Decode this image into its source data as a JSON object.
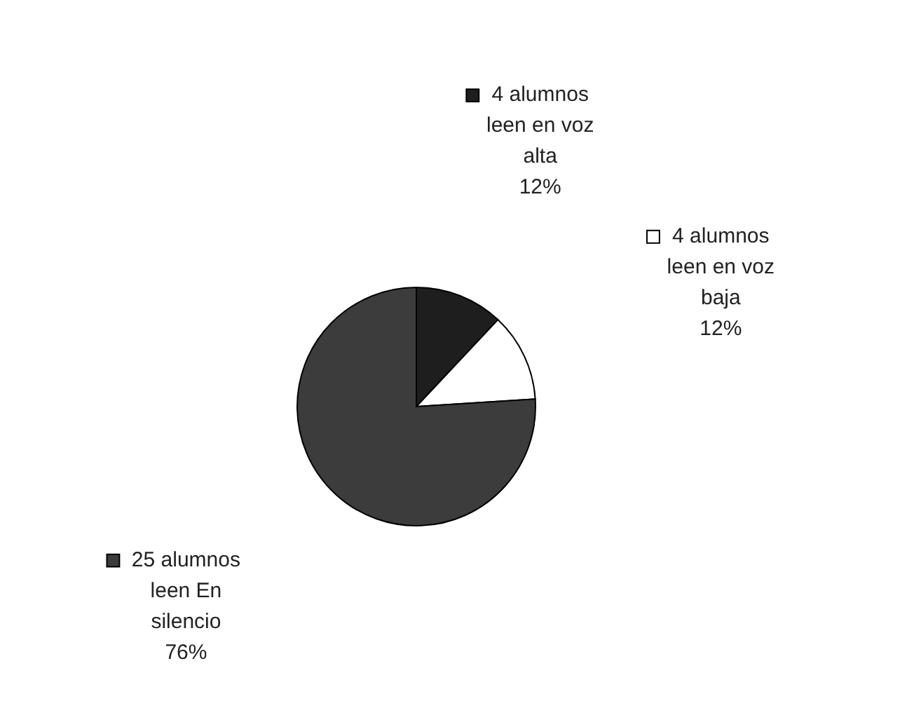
{
  "chart_data": {
    "type": "pie",
    "categories": [
      "4 alumnos leen en voz alta",
      "4 alumnos leen en voz baja",
      "25 alumnos leen En silencio"
    ],
    "values": [
      12,
      12,
      76
    ],
    "colors": [
      "#1e1e1e",
      "#ffffff",
      "#3c3c3c"
    ],
    "value_labels": [
      "12%",
      "12%",
      "76%"
    ],
    "legend": "top right"
  }
}
